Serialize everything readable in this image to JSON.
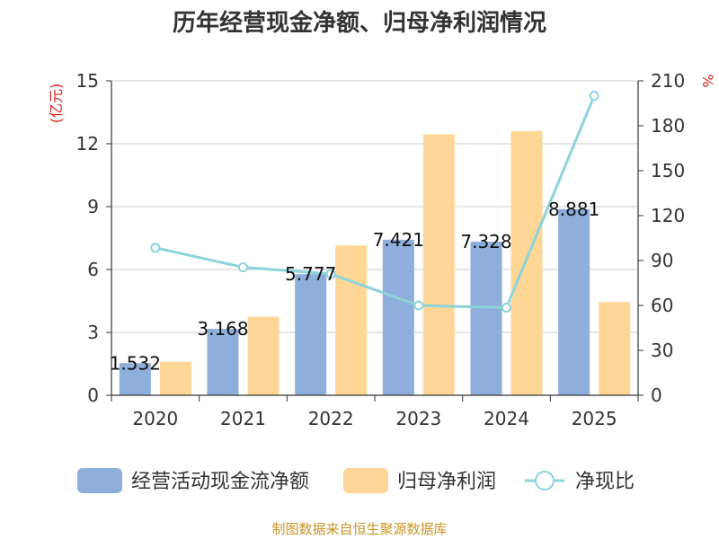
{
  "chart_data": {
    "type": "bar",
    "title": "历年经营现金净额、归母净利润情况",
    "categories": [
      "2020",
      "2021",
      "2022",
      "2023",
      "2024",
      "2025"
    ],
    "series": [
      {
        "name": "经营活动现金流净额",
        "kind": "bar",
        "axis": "left",
        "color": "#8eaedb",
        "values": [
          1.532,
          3.168,
          5.777,
          7.421,
          7.328,
          8.881
        ],
        "labels": [
          "1.532",
          "3.168",
          "5.777",
          "7.421",
          "7.328",
          "8.881"
        ]
      },
      {
        "name": "归母净利润",
        "kind": "bar",
        "axis": "left",
        "color": "#fed797",
        "values": [
          1.6,
          3.75,
          7.15,
          12.45,
          12.6,
          4.45
        ]
      },
      {
        "name": "净现比",
        "kind": "line",
        "axis": "right",
        "color": "#8dd3da",
        "values": [
          98.5,
          85.5,
          81.0,
          60.0,
          58.5,
          200.0
        ]
      }
    ],
    "y_left": {
      "label": "(亿元)",
      "min": 0,
      "max": 15,
      "ticks": [
        "0",
        "3",
        "6",
        "9",
        "12",
        "15"
      ]
    },
    "y_right": {
      "label": "%",
      "min": 0,
      "max": 210,
      "ticks": [
        "0",
        "30",
        "60",
        "90",
        "120",
        "150",
        "180",
        "210"
      ]
    },
    "grid": true,
    "legend_position": "bottom"
  },
  "source": "制图数据来自恒生聚源数据库"
}
